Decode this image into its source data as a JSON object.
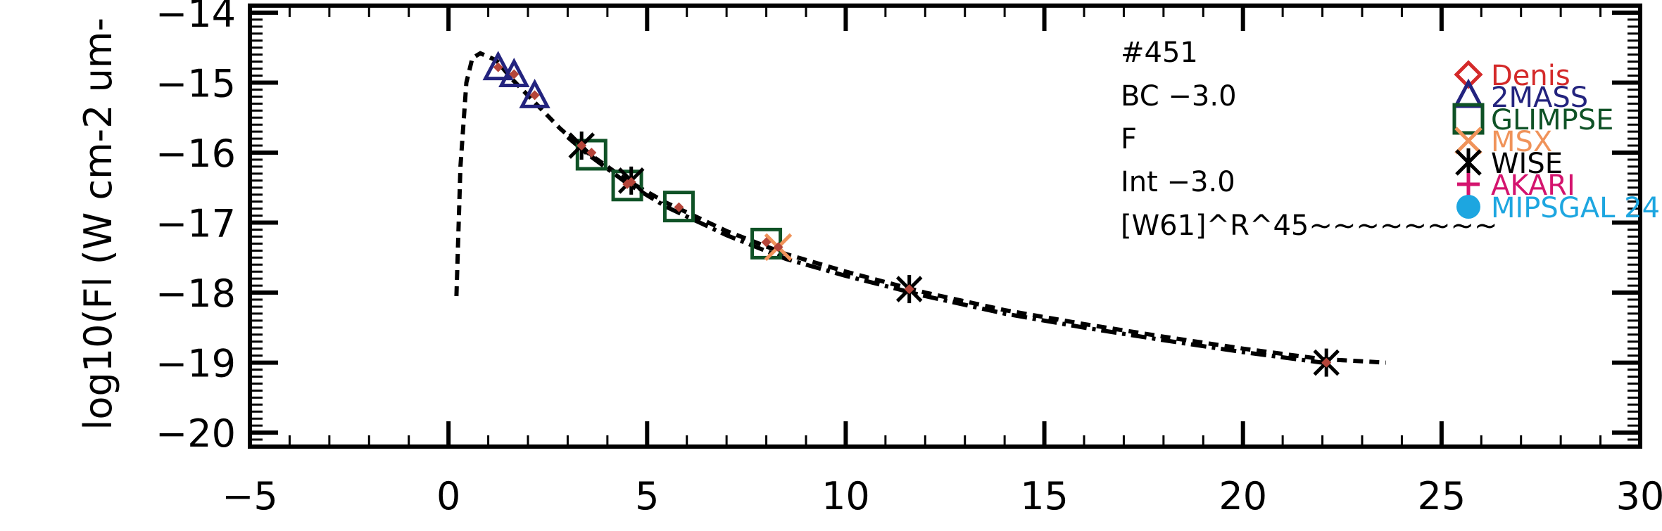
{
  "chart_data": {
    "type": "scatter",
    "title": "",
    "ylabel": "log10(Fl (W cm-2 um-",
    "xlabel": "",
    "xlim": [
      -5,
      30
    ],
    "ylim": [
      -20.2,
      -13.9
    ],
    "xticks": [
      -5,
      0,
      5,
      10,
      15,
      20,
      25,
      30
    ],
    "xtick_labels": [
      "−5",
      "0",
      "5",
      "10",
      "15",
      "20",
      "25",
      "30"
    ],
    "yticks": [
      -14,
      -15,
      -16,
      -17,
      -18,
      -19,
      -20
    ],
    "ytick_labels": [
      "−14",
      "−15",
      "−16",
      "−17",
      "−18",
      "−19",
      "−20"
    ],
    "annotations": [
      "#451",
      "BC −3.0",
      "F",
      "Int −3.0",
      "[W61]^R^45~~~~~~~~"
    ],
    "legend": {
      "placement": "right",
      "entries": [
        {
          "name": "Denis",
          "marker": "diamond",
          "color": "#d42a2a"
        },
        {
          "name": "2MASS",
          "marker": "triangle",
          "color": "#23237e"
        },
        {
          "name": "GLIMPSE",
          "marker": "square",
          "color": "#0f5226"
        },
        {
          "name": "MSX",
          "marker": "x",
          "color": "#f0935a"
        },
        {
          "name": "WISE",
          "marker": "asterisk",
          "color": "#000000"
        },
        {
          "name": "AKARI",
          "marker": "plus",
          "color": "#d4146e"
        },
        {
          "name": "MIPSGAL 24",
          "marker": "circle",
          "color": "#1da6e0"
        }
      ]
    },
    "series": [
      {
        "name": "2MASS",
        "marker": "triangle",
        "color": "#23237e",
        "x": [
          1.25,
          1.65,
          2.17
        ],
        "y": [
          -14.8,
          -14.9,
          -15.2
        ]
      },
      {
        "name": "GLIMPSE",
        "marker": "square",
        "color": "#0f5226",
        "x": [
          3.6,
          4.5,
          5.8,
          8.0
        ],
        "y": [
          -16.03,
          -16.47,
          -16.77,
          -17.3
        ]
      },
      {
        "name": "MSX",
        "marker": "x",
        "color": "#f0935a",
        "x": [
          8.3
        ],
        "y": [
          -17.35
        ]
      },
      {
        "name": "WISE",
        "marker": "asterisk",
        "color": "#000000",
        "x": [
          3.35,
          4.6,
          11.6,
          22.1
        ],
        "y": [
          -15.9,
          -16.4,
          -17.95,
          -19.0
        ]
      },
      {
        "name": "",
        "marker": "small-diamond",
        "color": "#b5453a",
        "x": [
          1.25,
          1.65,
          2.17,
          3.35,
          3.6,
          4.5,
          4.6,
          5.8,
          8.0,
          8.3,
          11.6,
          22.1
        ],
        "y": [
          -14.78,
          -14.88,
          -15.18,
          -15.9,
          -16.0,
          -16.45,
          -16.42,
          -16.78,
          -17.28,
          -17.35,
          -17.95,
          -19.0
        ]
      },
      {
        "name": "",
        "line": "dashed",
        "color": "#000000",
        "x": [
          0.2,
          0.3,
          0.45,
          0.6,
          0.8,
          1.2,
          1.6,
          2.2,
          2.8,
          3.5,
          4.5,
          5.5,
          7,
          8.5,
          10,
          12,
          14,
          16,
          18,
          20,
          22,
          23.6
        ],
        "y": [
          -18.05,
          -16.2,
          -15.0,
          -14.65,
          -14.58,
          -14.68,
          -14.95,
          -15.3,
          -15.65,
          -16.0,
          -16.4,
          -16.72,
          -17.12,
          -17.45,
          -17.7,
          -18.0,
          -18.25,
          -18.45,
          -18.63,
          -18.8,
          -18.95,
          -19.0
        ]
      },
      {
        "name": "",
        "line": "dashdot",
        "color": "#000000",
        "x": [
          3.0,
          3.5,
          4.5,
          5.5,
          7,
          8.5,
          10,
          12,
          14,
          16,
          18,
          20,
          22
        ],
        "y": [
          -15.78,
          -16.02,
          -16.44,
          -16.78,
          -17.18,
          -17.52,
          -17.76,
          -18.05,
          -18.3,
          -18.5,
          -18.68,
          -18.85,
          -19.0
        ]
      }
    ]
  }
}
